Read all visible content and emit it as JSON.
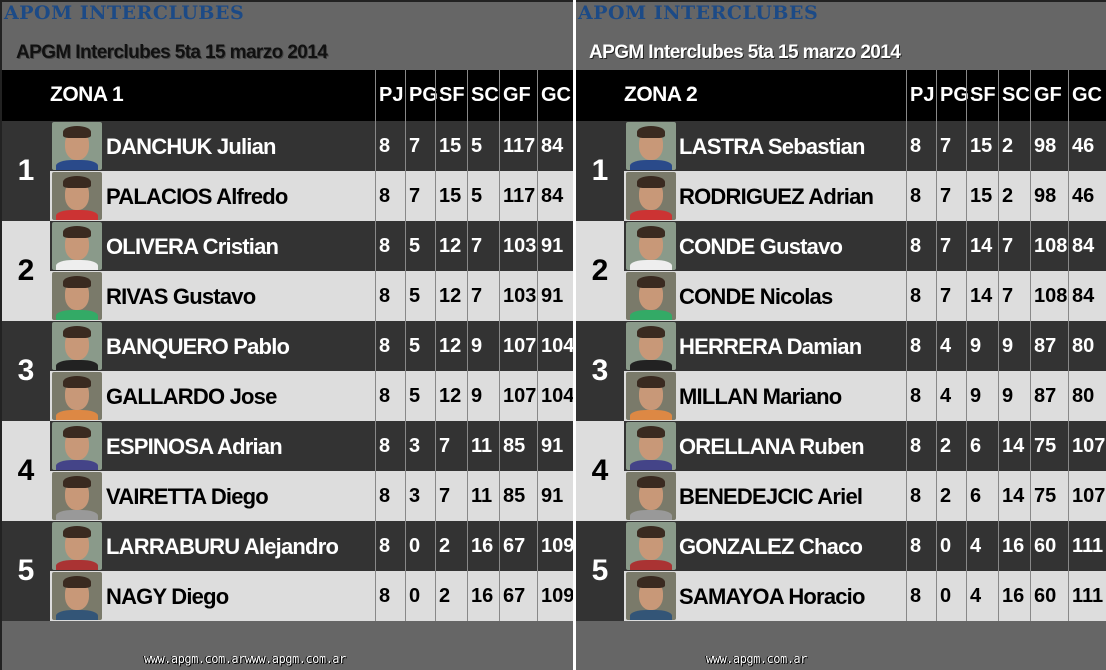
{
  "brand": "APOM INTERCLUBES",
  "subtitle": "APGM Interclubes 5ta 15 marzo 2014",
  "columns": [
    "PJ",
    "PG",
    "SF",
    "SC",
    "GF",
    "GC"
  ],
  "colors": {
    "brand": "#1c4a86",
    "dark_row": "#333333",
    "light_row": "#dddddd",
    "header": "#000000",
    "background": "#666666"
  },
  "zones": [
    {
      "title": "ZONA 1",
      "footer": "www.apgm.com.arwww.apgm.com.ar",
      "players": [
        {
          "rank": "1",
          "name": "DANCHUK Julian",
          "stats": [
            "8",
            "7",
            "15",
            "5",
            "117",
            "84"
          ]
        },
        {
          "rank": "",
          "name": "PALACIOS Alfredo",
          "stats": [
            "8",
            "7",
            "15",
            "5",
            "117",
            "84"
          ]
        },
        {
          "rank": "2",
          "name": "OLIVERA Cristian",
          "stats": [
            "8",
            "5",
            "12",
            "7",
            "103",
            "91"
          ]
        },
        {
          "rank": "",
          "name": "RIVAS Gustavo",
          "stats": [
            "8",
            "5",
            "12",
            "7",
            "103",
            "91"
          ]
        },
        {
          "rank": "3",
          "name": "BANQUERO Pablo",
          "stats": [
            "8",
            "5",
            "12",
            "9",
            "107",
            "104"
          ]
        },
        {
          "rank": "",
          "name": "GALLARDO Jose",
          "stats": [
            "8",
            "5",
            "12",
            "9",
            "107",
            "104"
          ]
        },
        {
          "rank": "4",
          "name": "ESPINOSA Adrian",
          "stats": [
            "8",
            "3",
            "7",
            "11",
            "85",
            "91"
          ]
        },
        {
          "rank": "",
          "name": "VAIRETTA Diego",
          "stats": [
            "8",
            "3",
            "7",
            "11",
            "85",
            "91"
          ]
        },
        {
          "rank": "5",
          "name": "LARRABURU Alejandro",
          "stats": [
            "8",
            "0",
            "2",
            "16",
            "67",
            "109"
          ]
        },
        {
          "rank": "",
          "name": "NAGY Diego",
          "stats": [
            "8",
            "0",
            "2",
            "16",
            "67",
            "109"
          ]
        }
      ]
    },
    {
      "title": "ZONA 2",
      "footer": "www.apgm.com.ar",
      "players": [
        {
          "rank": "1",
          "name": "LASTRA Sebastian",
          "stats": [
            "8",
            "7",
            "15",
            "2",
            "98",
            "46"
          ]
        },
        {
          "rank": "",
          "name": "RODRIGUEZ Adrian",
          "stats": [
            "8",
            "7",
            "15",
            "2",
            "98",
            "46"
          ]
        },
        {
          "rank": "2",
          "name": "CONDE Gustavo",
          "stats": [
            "8",
            "7",
            "14",
            "7",
            "108",
            "84"
          ]
        },
        {
          "rank": "",
          "name": "CONDE Nicolas",
          "stats": [
            "8",
            "7",
            "14",
            "7",
            "108",
            "84"
          ]
        },
        {
          "rank": "3",
          "name": "HERRERA Damian",
          "stats": [
            "8",
            "4",
            "9",
            "9",
            "87",
            "80"
          ]
        },
        {
          "rank": "",
          "name": "MILLAN Mariano",
          "stats": [
            "8",
            "4",
            "9",
            "9",
            "87",
            "80"
          ]
        },
        {
          "rank": "4",
          "name": "ORELLANA Ruben",
          "stats": [
            "8",
            "2",
            "6",
            "14",
            "75",
            "107"
          ]
        },
        {
          "rank": "",
          "name": "BENEDEJCIC Ariel",
          "stats": [
            "8",
            "2",
            "6",
            "14",
            "75",
            "107"
          ]
        },
        {
          "rank": "5",
          "name": "GONZALEZ Chaco",
          "stats": [
            "8",
            "0",
            "4",
            "16",
            "60",
            "111"
          ]
        },
        {
          "rank": "",
          "name": "SAMAYOA Horacio",
          "stats": [
            "8",
            "0",
            "4",
            "16",
            "60",
            "111"
          ]
        }
      ]
    }
  ]
}
